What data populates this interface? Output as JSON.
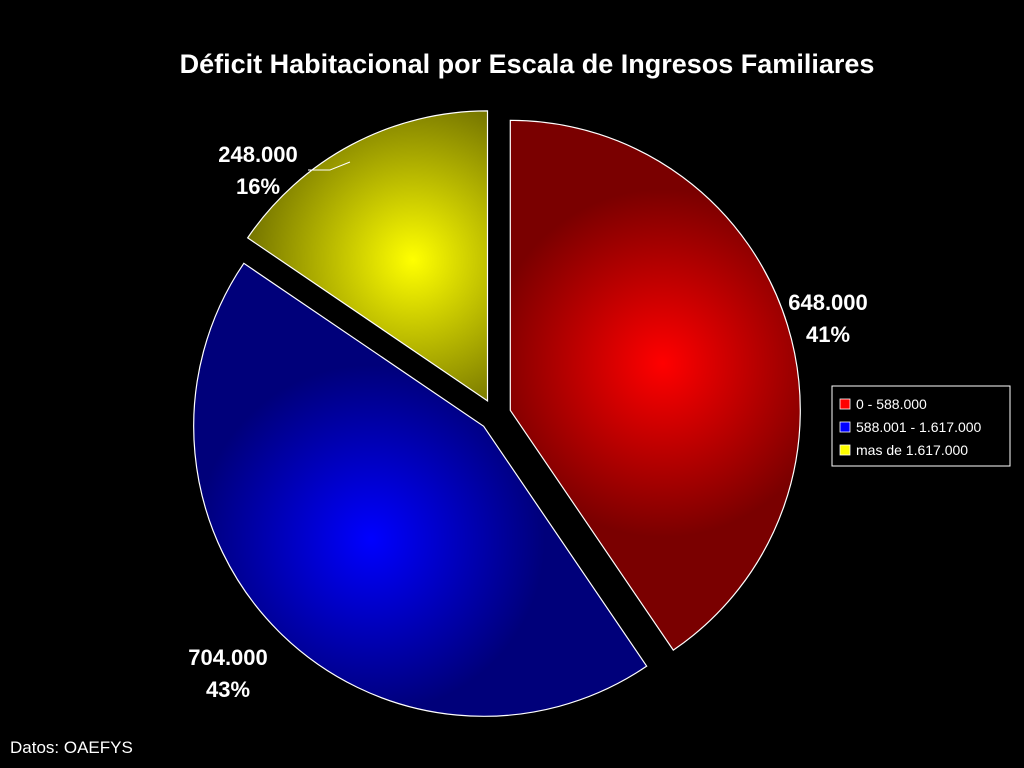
{
  "chart_data": {
    "type": "pie",
    "title": "Déficit Habitacional por Escala de Ingresos Familiares",
    "categories": [
      "0 - 588.000",
      "588.001 - 1.617.000",
      "mas de 1.617.000"
    ],
    "values": [
      648000,
      704000,
      248000
    ],
    "value_labels": [
      "648.000",
      "704.000",
      "248.000"
    ],
    "percent_labels": [
      "41%",
      "43%",
      "16%"
    ],
    "colors": [
      "#ff0000",
      "#0000ff",
      "#ffff00"
    ],
    "dark_colors": [
      "#7a0000",
      "#00007a",
      "#6e6e00"
    ],
    "exploded": true,
    "legend_position": "right"
  },
  "source_note": "Datos: OAEFYS"
}
